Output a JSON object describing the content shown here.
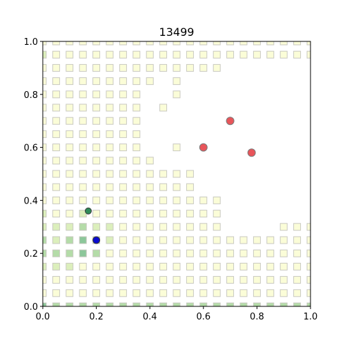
{
  "chart_data": {
    "type": "scatter",
    "title": "13499",
    "xlabel": "",
    "ylabel": "",
    "xlim": [
      0,
      1
    ],
    "ylim": [
      0,
      1
    ],
    "grid": false,
    "xticks": [
      "0.0",
      "0.2",
      "0.4",
      "0.6",
      "0.8",
      "1.0"
    ],
    "yticks": [
      "0.0",
      "0.2",
      "0.4",
      "0.6",
      "0.8",
      "1.0"
    ],
    "grid_step": 0.05,
    "colors": {
      "light": "#fbfdd8",
      "pale": "#dcefbc",
      "mid": "#b4dca8",
      "dark": "#8cc79a",
      "deep": "#6aa883",
      "darkest": "#4d8a73",
      "square_edge": "#c8c8c0",
      "red_point": "#e8555a",
      "green_point": "#2e8b57",
      "blue_point": "#0a0ad0"
    },
    "grid_rows": [
      {
        "y": 0.0,
        "row": "43333333333333333333333335"
      },
      {
        "y": 0.05,
        "row": "11111111111111111111111111"
      },
      {
        "y": 0.1,
        "row": "11111111111111111111111111"
      },
      {
        "y": 0.15,
        "row": "22211111111111111111111111"
      },
      {
        "y": 0.2,
        "row": "33343111111111111111110001"
      },
      {
        "y": 0.25,
        "row": "32343211111111111111111101"
      },
      {
        "y": 0.3,
        "row": "22232211111111000011111111"
      },
      {
        "y": 0.35,
        "row": "21121111111111000000000001"
      },
      {
        "y": 0.4,
        "row": "11111111111111000000000011"
      },
      {
        "y": 0.45,
        "row": "11111111111100000000000000"
      },
      {
        "y": 0.5,
        "row": "11111111111100000000000000"
      },
      {
        "y": 0.55,
        "row": "11111111100000000000000000"
      },
      {
        "y": 0.6,
        "row": "11111111001000000000000000"
      },
      {
        "y": 0.65,
        "row": "11111111000000000000000000"
      },
      {
        "y": 0.7,
        "row": "11111111000000000000000000"
      },
      {
        "y": 0.75,
        "row": "11111111010000000000000000"
      },
      {
        "y": 0.8,
        "row": "11111111001000000000000011"
      },
      {
        "y": 0.85,
        "row": "11111111101000000000000011"
      },
      {
        "y": 0.9,
        "row": "11111111111111000000001111"
      },
      {
        "y": 0.95,
        "row": "21111111111111111111111121"
      },
      {
        "y": 1.0,
        "row": "11111111111111111111111111"
      }
    ],
    "points": [
      {
        "x": 0.6,
        "y": 0.6,
        "color": "red"
      },
      {
        "x": 0.7,
        "y": 0.7,
        "color": "red"
      },
      {
        "x": 0.78,
        "y": 0.58,
        "color": "red"
      },
      {
        "x": 0.17,
        "y": 0.36,
        "color": "green"
      },
      {
        "x": 0.2,
        "y": 0.25,
        "color": "blue"
      }
    ]
  }
}
